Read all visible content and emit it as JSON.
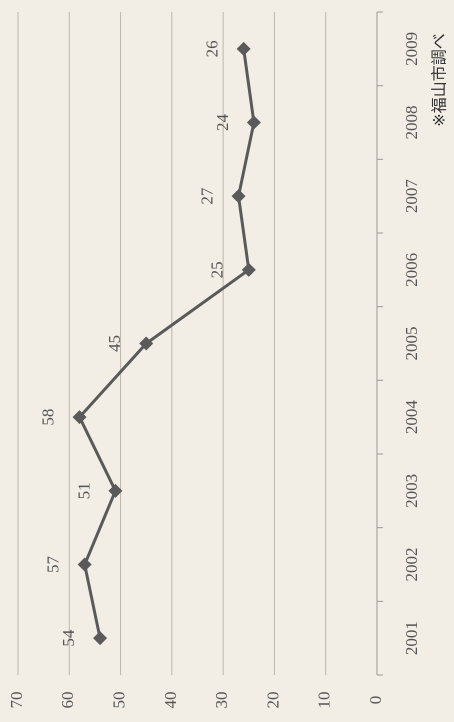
{
  "chart_data": {
    "type": "line",
    "categories": [
      "2001",
      "2002",
      "2003",
      "2004",
      "2005",
      "2006",
      "2007",
      "2008",
      "2009"
    ],
    "series": [
      {
        "name": null,
        "color": "#5a5a5a",
        "values": [
          54,
          57,
          51,
          58,
          45,
          25,
          27,
          24,
          26
        ]
      }
    ],
    "ylim": [
      0,
      70
    ],
    "yticks": [
      0,
      10,
      20,
      30,
      40,
      50,
      60,
      70
    ],
    "grid": true,
    "annotations": [
      "※福山市調べ"
    ]
  }
}
